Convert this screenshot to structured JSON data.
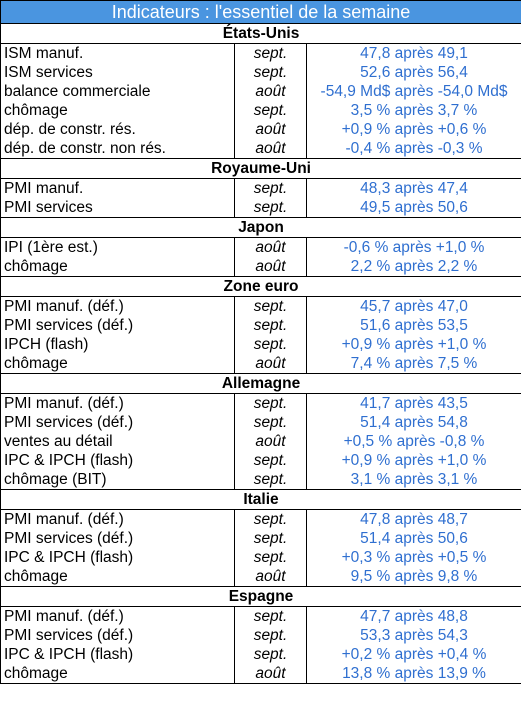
{
  "title": "Indicateurs : l'essentiel de la semaine",
  "sections": [
    {
      "name": "États-Unis",
      "rows": [
        {
          "label": "ISM manuf.",
          "period": "sept.",
          "value": "47,8 après 49,1"
        },
        {
          "label": "ISM services",
          "period": "sept.",
          "value": "52,6 après 56,4"
        },
        {
          "label": "balance commerciale",
          "period": "août",
          "value": "-54,9 Md$ après -54,0 Md$"
        },
        {
          "label": "chômage",
          "period": "sept.",
          "value": "3,5 % après 3,7 %"
        },
        {
          "label": "dép. de constr. rés.",
          "period": "août",
          "value": "+0,9 % après +0,6 %"
        },
        {
          "label": "dép. de constr. non rés.",
          "period": "août",
          "value": "-0,4 % après -0,3 %"
        }
      ]
    },
    {
      "name": "Royaume-Uni",
      "rows": [
        {
          "label": "PMI manuf.",
          "period": "sept.",
          "value": "48,3 après 47,4"
        },
        {
          "label": "PMI services",
          "period": "sept.",
          "value": "49,5 après 50,6"
        }
      ]
    },
    {
      "name": "Japon",
      "rows": [
        {
          "label": "IPI (1ère est.)",
          "period": "août",
          "value": "-0,6 % après +1,0 %"
        },
        {
          "label": "chômage",
          "period": "août",
          "value": "2,2 % après 2,2 %"
        }
      ]
    },
    {
      "name": "Zone euro",
      "rows": [
        {
          "label": "PMI manuf. (déf.)",
          "period": "sept.",
          "value": "45,7 après 47,0"
        },
        {
          "label": "PMI services (déf.)",
          "period": "sept.",
          "value": "51,6 après 53,5"
        },
        {
          "label": "IPCH (flash)",
          "period": "sept.",
          "value": "+0,9 % après +1,0 %"
        },
        {
          "label": "chômage",
          "period": "août",
          "value": "7,4 % après 7,5 %"
        }
      ]
    },
    {
      "name": "Allemagne",
      "rows": [
        {
          "label": "PMI manuf. (déf.)",
          "period": "sept.",
          "value": "41,7 après 43,5"
        },
        {
          "label": "PMI services (déf.)",
          "period": "sept.",
          "value": "51,4 après 54,8"
        },
        {
          "label": "ventes au détail",
          "period": "août",
          "value": "+0,5 % après -0,8 %"
        },
        {
          "label": "IPC & IPCH (flash)",
          "period": "sept.",
          "value": "+0,9 % après +1,0 %"
        },
        {
          "label": "chômage (BIT)",
          "period": "sept.",
          "value": "3,1 % après 3,1 %"
        }
      ]
    },
    {
      "name": "Italie",
      "rows": [
        {
          "label": "PMI manuf. (déf.)",
          "period": "sept.",
          "value": "47,8 après 48,7"
        },
        {
          "label": "PMI services (déf.)",
          "period": "sept.",
          "value": "51,4 après 50,6"
        },
        {
          "label": "IPC & IPCH (flash)",
          "period": "sept.",
          "value": "+0,3 % après +0,5 %"
        },
        {
          "label": "chômage",
          "period": "août",
          "value": "9,5 % après 9,8 %"
        }
      ]
    },
    {
      "name": "Espagne",
      "rows": [
        {
          "label": "PMI manuf. (déf.)",
          "period": "sept.",
          "value": "47,7 après 48,8"
        },
        {
          "label": "PMI services (déf.)",
          "period": "sept.",
          "value": "53,3 après 54,3"
        },
        {
          "label": "IPC & IPCH (flash)",
          "period": "sept.",
          "value": "+0,2 % après +0,4 %"
        },
        {
          "label": "chômage",
          "period": "août",
          "value": "13,8 % après 13,9 %"
        }
      ]
    }
  ],
  "colors": {
    "header_bg": "#4a95e0",
    "header_text": "#ffffff",
    "value_text": "#2f6fd0"
  }
}
